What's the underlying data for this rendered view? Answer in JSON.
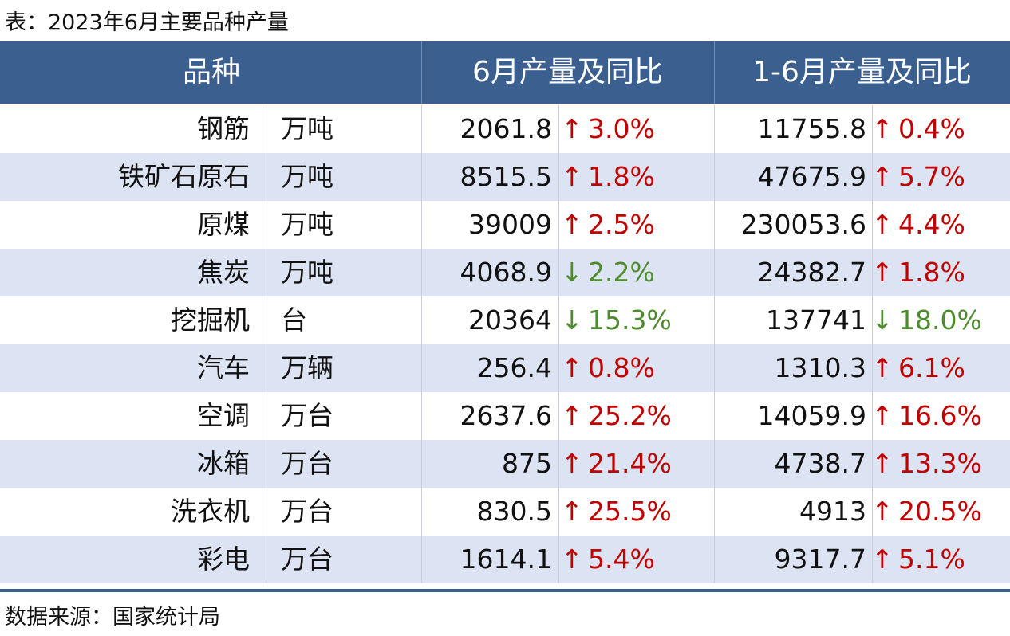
{
  "title": "表：2023年6月主要品种产量",
  "table": {
    "header": [
      "品种",
      "6月产量及同比",
      "1-6月产量及同比"
    ],
    "rows": [
      {
        "name": "钢筋",
        "unit": "万吨",
        "month": {
          "value": "2061.8",
          "arrow": "↑",
          "change": "3.0%",
          "color": "#c00000"
        },
        "ytd": {
          "value": "11755.8",
          "arrow": "↑",
          "change": "0.4%",
          "color": "#c00000"
        }
      },
      {
        "name": "铁矿石原石",
        "unit": "万吨",
        "month": {
          "value": "8515.5",
          "arrow": "↑",
          "change": "1.8%",
          "color": "#c00000"
        },
        "ytd": {
          "value": "47675.9",
          "arrow": "↑",
          "change": "5.7%",
          "color": "#c00000"
        }
      },
      {
        "name": "原煤",
        "unit": "万吨",
        "month": {
          "value": "39009",
          "arrow": "↑",
          "change": "2.5%",
          "color": "#c00000"
        },
        "ytd": {
          "value": "230053.6",
          "arrow": "↑",
          "change": "4.4%",
          "color": "#c00000"
        }
      },
      {
        "name": "焦炭",
        "unit": "万吨",
        "month": {
          "value": "4068.9",
          "arrow": "↓",
          "change": "2.2%",
          "color": "#4e8a2e"
        },
        "ytd": {
          "value": "24382.7",
          "arrow": "↑",
          "change": "1.8%",
          "color": "#c00000"
        }
      },
      {
        "name": "挖掘机",
        "unit": "台",
        "month": {
          "value": "20364",
          "arrow": "↓",
          "change": "15.3%",
          "color": "#4e8a2e"
        },
        "ytd": {
          "value": "137741",
          "arrow": "↓",
          "change": "18.0%",
          "color": "#4e8a2e"
        }
      },
      {
        "name": "汽车",
        "unit": "万辆",
        "month": {
          "value": "256.4",
          "arrow": "↑",
          "change": "0.8%",
          "color": "#c00000"
        },
        "ytd": {
          "value": "1310.3",
          "arrow": "↑",
          "change": "6.1%",
          "color": "#c00000"
        }
      },
      {
        "name": "空调",
        "unit": "万台",
        "month": {
          "value": "2637.6",
          "arrow": "↑",
          "change": "25.2%",
          "color": "#c00000"
        },
        "ytd": {
          "value": "14059.9",
          "arrow": "↑",
          "change": "16.6%",
          "color": "#c00000"
        }
      },
      {
        "name": "冰箱",
        "unit": "万台",
        "month": {
          "value": "875",
          "arrow": "↑",
          "change": "21.4%",
          "color": "#c00000"
        },
        "ytd": {
          "value": "4738.7",
          "arrow": "↑",
          "change": "13.3%",
          "color": "#c00000"
        }
      },
      {
        "name": "洗衣机",
        "unit": "万台",
        "month": {
          "value": "830.5",
          "arrow": "↑",
          "change": "25.5%",
          "color": "#c00000"
        },
        "ytd": {
          "value": "4913",
          "arrow": "↑",
          "change": "20.5%",
          "color": "#c00000"
        }
      },
      {
        "name": "彩电",
        "unit": "万台",
        "month": {
          "value": "1614.1",
          "arrow": "↑",
          "change": "5.4%",
          "color": "#c00000"
        },
        "ytd": {
          "value": "9317.7",
          "arrow": "↑",
          "change": "5.1%",
          "color": "#c00000"
        }
      }
    ]
  },
  "source": "数据来源：国家统计局"
}
